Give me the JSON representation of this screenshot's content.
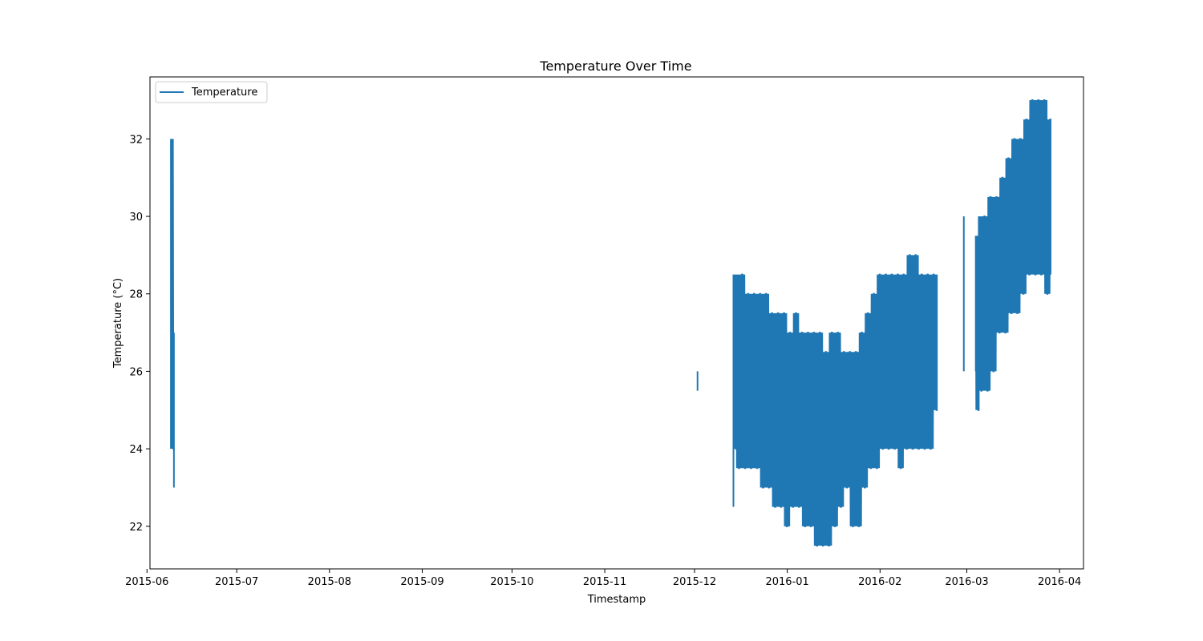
{
  "chart_data": {
    "type": "line",
    "title": "Temperature Over Time",
    "xlabel": "Timestamp",
    "ylabel": "Temperature (°C)",
    "xlim": [
      "2015-06-02",
      "2016-04-09"
    ],
    "ylim": [
      20.9,
      33.6
    ],
    "x_ticks": [
      "2015-06",
      "2015-07",
      "2015-08",
      "2015-09",
      "2015-10",
      "2015-11",
      "2015-12",
      "2016-01",
      "2016-02",
      "2016-03",
      "2016-04"
    ],
    "y_ticks": [
      22,
      24,
      26,
      28,
      30,
      32
    ],
    "grid": false,
    "legend": {
      "position": "upper-left",
      "entries": [
        "Temperature"
      ]
    },
    "series": [
      {
        "name": "Temperature",
        "color": "#1f77b4",
        "segments": [
          [
            [
              "2015-06-09",
              24.0
            ],
            [
              "2015-06-09",
              31.0
            ],
            [
              "2015-06-09",
              32.0
            ],
            [
              "2015-06-10",
              24.0
            ],
            [
              "2015-06-10",
              26.0
            ],
            [
              "2015-06-10",
              24.0
            ],
            [
              "2015-06-10",
              27.0
            ],
            [
              "2015-06-10",
              23.0
            ]
          ],
          [
            [
              "2015-12-02",
              26.0
            ],
            [
              "2015-12-02",
              25.5
            ]
          ],
          [
            [
              "2015-12-14",
              22.5
            ],
            [
              "2015-12-14",
              28.5
            ],
            [
              "2015-12-15",
              24.0
            ],
            [
              "2015-12-15",
              28.5
            ],
            [
              "2015-12-16",
              23.5
            ],
            [
              "2015-12-17",
              28.5
            ],
            [
              "2015-12-18",
              23.5
            ],
            [
              "2015-12-19",
              28.0
            ],
            [
              "2015-12-20",
              23.5
            ],
            [
              "2015-12-21",
              28.0
            ],
            [
              "2015-12-22",
              23.5
            ],
            [
              "2015-12-23",
              28.0
            ],
            [
              "2015-12-24",
              23.0
            ],
            [
              "2015-12-25",
              28.0
            ],
            [
              "2015-12-26",
              23.0
            ],
            [
              "2015-12-27",
              27.5
            ],
            [
              "2015-12-28",
              22.5
            ],
            [
              "2015-12-29",
              27.5
            ],
            [
              "2015-12-30",
              22.5
            ],
            [
              "2015-12-31",
              27.5
            ],
            [
              "2016-01-01",
              22.0
            ],
            [
              "2016-01-02",
              27.0
            ],
            [
              "2016-01-03",
              22.5
            ],
            [
              "2016-01-04",
              27.5
            ],
            [
              "2016-01-05",
              22.5
            ],
            [
              "2016-01-06",
              27.0
            ],
            [
              "2016-01-07",
              22.0
            ],
            [
              "2016-01-08",
              27.0
            ],
            [
              "2016-01-09",
              22.0
            ],
            [
              "2016-01-10",
              27.0
            ],
            [
              "2016-01-11",
              21.5
            ],
            [
              "2016-01-12",
              27.0
            ],
            [
              "2016-01-13",
              21.5
            ],
            [
              "2016-01-14",
              26.5
            ],
            [
              "2016-01-15",
              21.5
            ],
            [
              "2016-01-16",
              27.0
            ],
            [
              "2016-01-17",
              22.0
            ],
            [
              "2016-01-18",
              27.0
            ],
            [
              "2016-01-19",
              22.5
            ],
            [
              "2016-01-20",
              26.5
            ],
            [
              "2016-01-21",
              23.0
            ],
            [
              "2016-01-22",
              26.5
            ],
            [
              "2016-01-23",
              22.0
            ],
            [
              "2016-01-24",
              26.5
            ],
            [
              "2016-01-25",
              22.0
            ],
            [
              "2016-01-26",
              27.0
            ],
            [
              "2016-01-27",
              23.0
            ],
            [
              "2016-01-28",
              27.5
            ],
            [
              "2016-01-29",
              23.5
            ],
            [
              "2016-01-30",
              28.0
            ],
            [
              "2016-01-31",
              23.5
            ],
            [
              "2016-02-01",
              28.5
            ],
            [
              "2016-02-02",
              24.0
            ],
            [
              "2016-02-03",
              28.5
            ],
            [
              "2016-02-04",
              24.0
            ],
            [
              "2016-02-05",
              28.5
            ],
            [
              "2016-02-06",
              24.0
            ],
            [
              "2016-02-07",
              28.5
            ],
            [
              "2016-02-08",
              23.5
            ],
            [
              "2016-02-09",
              28.5
            ],
            [
              "2016-02-10",
              24.0
            ],
            [
              "2016-02-11",
              29.0
            ],
            [
              "2016-02-12",
              24.0
            ],
            [
              "2016-02-13",
              29.0
            ],
            [
              "2016-02-14",
              24.0
            ],
            [
              "2016-02-15",
              28.5
            ],
            [
              "2016-02-16",
              24.0
            ],
            [
              "2016-02-17",
              28.5
            ],
            [
              "2016-02-18",
              24.0
            ],
            [
              "2016-02-19",
              28.5
            ],
            [
              "2016-02-20",
              25.0
            ],
            [
              "2016-02-20",
              28.5
            ]
          ],
          [
            [
              "2016-02-29",
              26.0
            ],
            [
              "2016-02-29",
              30.0
            ],
            [
              "2016-02-29",
              27.0
            ]
          ],
          [
            [
              "2016-03-04",
              26.0
            ],
            [
              "2016-03-04",
              29.5
            ],
            [
              "2016-03-05",
              25.0
            ],
            [
              "2016-03-05",
              30.0
            ],
            [
              "2016-03-06",
              25.5
            ],
            [
              "2016-03-07",
              30.0
            ],
            [
              "2016-03-08",
              25.5
            ],
            [
              "2016-03-09",
              30.5
            ],
            [
              "2016-03-10",
              26.0
            ],
            [
              "2016-03-11",
              30.5
            ],
            [
              "2016-03-12",
              27.0
            ],
            [
              "2016-03-13",
              31.0
            ],
            [
              "2016-03-14",
              27.0
            ],
            [
              "2016-03-15",
              31.5
            ],
            [
              "2016-03-16",
              27.5
            ],
            [
              "2016-03-17",
              32.0
            ],
            [
              "2016-03-18",
              27.5
            ],
            [
              "2016-03-19",
              32.0
            ],
            [
              "2016-03-20",
              28.0
            ],
            [
              "2016-03-21",
              32.5
            ],
            [
              "2016-03-22",
              28.5
            ],
            [
              "2016-03-23",
              33.0
            ],
            [
              "2016-03-24",
              28.5
            ],
            [
              "2016-03-25",
              33.0
            ],
            [
              "2016-03-26",
              28.5
            ],
            [
              "2016-03-27",
              33.0
            ],
            [
              "2016-03-28",
              28.0
            ],
            [
              "2016-03-29",
              32.5
            ],
            [
              "2016-03-29",
              28.5
            ]
          ]
        ]
      }
    ]
  }
}
